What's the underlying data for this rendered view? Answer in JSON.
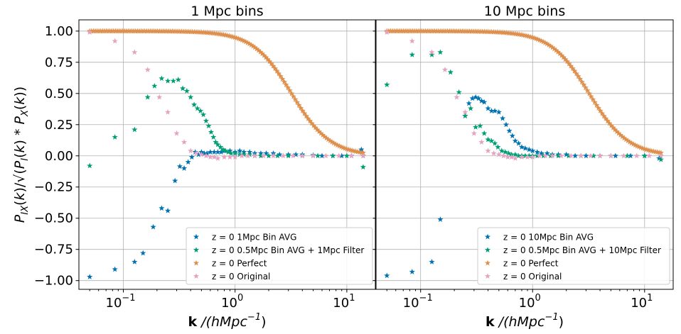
{
  "figure": {
    "ylabel": "P_IX(k)/√(P_I(k) * P_X(k))",
    "xlabel": "k /(hMpc^-1)",
    "xlabel_bold": "k",
    "xlabel_rest": " /(hMpc",
    "xlabel_sup": "−1",
    "xlabel_close": ")"
  },
  "colors": {
    "Bin AVG": "#0072b2",
    "Filter": "#009e73",
    "Perfect": "#de8f4c",
    "Original": "#e5a3c2"
  },
  "chart_data": [
    {
      "type": "scatter",
      "title": "1 Mpc bins",
      "xscale": "log",
      "xlim": [
        0.04,
        18
      ],
      "ylim": [
        -1.07,
        1.09
      ],
      "yticks": [
        -1.0,
        -0.75,
        -0.5,
        -0.25,
        0.0,
        0.25,
        0.5,
        0.75,
        1.0
      ],
      "ytick_labels": [
        "−1.00",
        "−0.75",
        "−0.50",
        "−0.25",
        "0.00",
        "0.25",
        "0.50",
        "0.75",
        "1.00"
      ],
      "xticks": [
        0.1,
        1,
        10
      ],
      "xtick_labels": [
        "10",
        "10",
        "10"
      ],
      "xtick_exps": [
        "−1",
        "0",
        "1"
      ],
      "grid": true,
      "legend": "lower-right",
      "marker": "star",
      "series": [
        {
          "name": "z = 0  1Mpc Bin AVG",
          "x": [
            0.05,
            0.084,
            0.126,
            0.15,
            0.185,
            0.22,
            0.25,
            0.29,
            0.32,
            0.35,
            0.38,
            0.41,
            0.44,
            0.47,
            0.5,
            0.53,
            0.56,
            0.6,
            0.65,
            0.7,
            0.75,
            0.8,
            0.9,
            1.0,
            1.1,
            1.2,
            1.35,
            1.5,
            1.7,
            1.9,
            2.2,
            2.5,
            3.0,
            3.5,
            4.0,
            5.0,
            6.0,
            7.5,
            9.0,
            11.0,
            13.5,
            14.0
          ],
          "y": [
            -0.97,
            -0.91,
            -0.85,
            -0.78,
            -0.57,
            -0.42,
            -0.44,
            -0.2,
            -0.085,
            -0.1,
            -0.05,
            -0.01,
            0.03,
            0.01,
            0.03,
            0.02,
            0.02,
            0.03,
            0.03,
            0.03,
            0.03,
            0.04,
            0.04,
            0.03,
            0.04,
            0.03,
            0.03,
            0.02,
            0.02,
            0.02,
            0.02,
            0.01,
            0.01,
            0.01,
            0.01,
            0.005,
            0.0,
            0.0,
            0.0,
            0.0,
            0.05,
            0.0
          ]
        },
        {
          "name": "z = 0  0.5Mpc Bin AVG + 1Mpc Filter",
          "x": [
            0.05,
            0.084,
            0.126,
            0.165,
            0.19,
            0.22,
            0.25,
            0.28,
            0.31,
            0.34,
            0.37,
            0.4,
            0.43,
            0.46,
            0.49,
            0.52,
            0.55,
            0.58,
            0.61,
            0.64,
            0.67,
            0.7,
            0.74,
            0.78,
            0.82,
            0.87,
            0.92,
            1.0,
            1.1,
            1.2,
            1.35,
            1.5,
            1.7,
            2.0,
            2.4,
            3.0,
            4.0,
            5.5,
            7.5,
            10.0,
            14.0
          ],
          "y": [
            -0.08,
            0.15,
            0.21,
            0.47,
            0.56,
            0.62,
            0.6,
            0.6,
            0.61,
            0.54,
            0.52,
            0.47,
            0.41,
            0.38,
            0.36,
            0.33,
            0.28,
            0.24,
            0.19,
            0.15,
            0.11,
            0.09,
            0.07,
            0.05,
            0.04,
            0.03,
            0.02,
            0.02,
            0.01,
            0.01,
            0.01,
            0.0,
            0.0,
            0.0,
            0.0,
            0.0,
            0.0,
            0.0,
            0.0,
            0.0,
            -0.09
          ]
        },
        {
          "name": "z = 0  Perfect",
          "mode": "curve",
          "curve": {
            "k0": 3.2,
            "n": 2.5,
            "xmin": 0.05,
            "xmax": 14.0,
            "count": 150
          }
        },
        {
          "name": "z = 0  Original",
          "x": [
            0.05,
            0.084,
            0.126,
            0.165,
            0.21,
            0.25,
            0.3,
            0.35,
            0.4,
            0.45,
            0.5,
            0.55,
            0.6,
            0.65,
            0.7,
            0.8,
            0.9,
            1.0,
            1.15,
            1.3,
            1.5,
            1.8,
            2.2,
            2.7,
            3.3,
            4.0,
            5.0,
            6.5,
            8.5,
            11.0,
            14.0
          ],
          "y": [
            0.99,
            0.92,
            0.83,
            0.69,
            0.47,
            0.35,
            0.18,
            0.11,
            0.04,
            0.02,
            0.01,
            0.0,
            -0.01,
            -0.01,
            -0.02,
            -0.01,
            -0.01,
            -0.01,
            0.0,
            0.0,
            0.0,
            0.0,
            0.0,
            0.0,
            0.0,
            0.0,
            0.0,
            0.0,
            0.0,
            0.0,
            0.0
          ]
        }
      ]
    },
    {
      "type": "scatter",
      "title": "10 Mpc bins",
      "xscale": "log",
      "xlim": [
        0.04,
        18
      ],
      "ylim": [
        -1.07,
        1.09
      ],
      "yticks": [
        -1.0,
        -0.75,
        -0.5,
        -0.25,
        0.0,
        0.25,
        0.5,
        0.75,
        1.0
      ],
      "ytick_labels": [],
      "xticks": [
        0.1,
        1,
        10
      ],
      "xtick_labels": [
        "10",
        "10",
        "10"
      ],
      "xtick_exps": [
        "−1",
        "0",
        "1"
      ],
      "grid": true,
      "legend": "lower-right",
      "marker": "star",
      "series": [
        {
          "name": "z = 0  10Mpc Bin AVG",
          "x": [
            0.05,
            0.084,
            0.126,
            0.15,
            0.25,
            0.27,
            0.29,
            0.31,
            0.33,
            0.35,
            0.37,
            0.4,
            0.43,
            0.46,
            0.5,
            0.54,
            0.58,
            0.62,
            0.66,
            0.7,
            0.75,
            0.8,
            0.86,
            0.93,
            1.0,
            1.1,
            1.2,
            1.35,
            1.5,
            1.7,
            2.0,
            2.4,
            3.0,
            4.0,
            5.5,
            7.5,
            10.0,
            13.5
          ],
          "y": [
            -0.96,
            -0.93,
            -0.85,
            -0.51,
            0.32,
            0.42,
            0.46,
            0.47,
            0.46,
            0.44,
            0.43,
            0.38,
            0.36,
            0.36,
            0.35,
            0.3,
            0.25,
            0.2,
            0.16,
            0.12,
            0.1,
            0.07,
            0.06,
            0.05,
            0.04,
            0.03,
            0.02,
            0.02,
            0.01,
            0.01,
            0.01,
            0.0,
            0.0,
            0.0,
            0.0,
            0.0,
            0.0,
            -0.02
          ]
        },
        {
          "name": "z = 0  0.5Mpc Bin AVG + 10Mpc Filter",
          "x": [
            0.05,
            0.084,
            0.126,
            0.15,
            0.185,
            0.22,
            0.25,
            0.28,
            0.31,
            0.34,
            0.37,
            0.4,
            0.43,
            0.46,
            0.49,
            0.53,
            0.57,
            0.61,
            0.65,
            0.7,
            0.75,
            0.8,
            0.86,
            0.93,
            1.0,
            1.1,
            1.25,
            1.45,
            1.7,
            2.1,
            2.7,
            3.5,
            5.0,
            7.0,
            10.0,
            14.0
          ],
          "y": [
            0.57,
            0.81,
            0.81,
            0.83,
            0.67,
            0.51,
            0.32,
            0.38,
            0.23,
            0.24,
            0.18,
            0.13,
            0.12,
            0.1,
            0.07,
            0.04,
            0.03,
            0.02,
            0.01,
            0.01,
            0.0,
            0.0,
            0.0,
            0.0,
            0.0,
            0.0,
            0.0,
            0.0,
            0.0,
            0.0,
            0.0,
            0.0,
            0.0,
            0.0,
            0.0,
            -0.03
          ]
        },
        {
          "name": "z = 0  Perfect",
          "mode": "curve",
          "curve": {
            "k0": 3.2,
            "n": 2.5,
            "xmin": 0.05,
            "xmax": 14.0,
            "count": 150
          }
        },
        {
          "name": "z = 0  Original",
          "x": [
            0.05,
            0.084,
            0.126,
            0.165,
            0.21,
            0.25,
            0.3,
            0.35,
            0.4,
            0.45,
            0.5,
            0.55,
            0.6,
            0.65,
            0.7,
            0.8,
            0.9,
            1.0,
            1.15,
            1.3,
            1.5,
            1.8,
            2.2,
            2.7,
            3.3,
            4.0,
            5.0,
            6.5,
            8.5,
            11.0,
            14.0
          ],
          "y": [
            0.99,
            0.92,
            0.83,
            0.69,
            0.47,
            0.35,
            0.18,
            0.11,
            0.04,
            0.02,
            0.01,
            0.0,
            -0.01,
            -0.01,
            -0.02,
            -0.01,
            -0.01,
            -0.01,
            0.0,
            0.0,
            0.0,
            0.0,
            0.0,
            0.0,
            0.0,
            0.0,
            0.0,
            0.0,
            0.0,
            0.0,
            0.0
          ]
        }
      ]
    }
  ]
}
